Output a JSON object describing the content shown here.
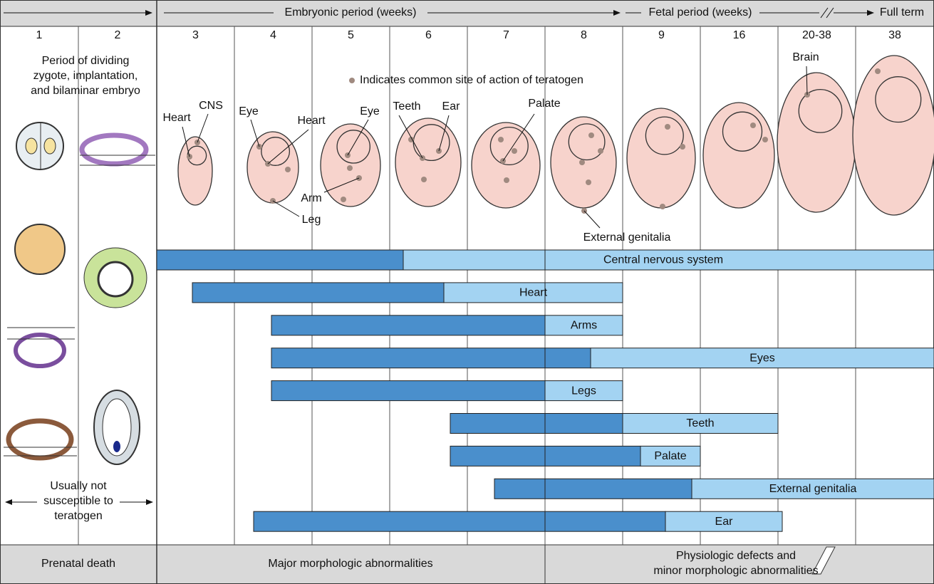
{
  "header": {
    "embryonic": "Embryonic period (weeks)",
    "fetal": "Fetal period (weeks)",
    "term": "Full term"
  },
  "weeks": [
    "1",
    "2",
    "3",
    "4",
    "5",
    "6",
    "7",
    "8",
    "9",
    "16",
    "20-38",
    "38"
  ],
  "early_note": [
    "Period of dividing",
    "zygote, implantation,",
    "and bilaminar embryo"
  ],
  "legend": "Indicates common site of action of teratogen",
  "labels": [
    "Heart",
    "CNS",
    "Eye",
    "Heart",
    "Eye",
    "Teeth",
    "Ear",
    "Palate",
    "Arm",
    "Leg",
    "External genitalia",
    "Brain"
  ],
  "not_susceptible": [
    "Usually not",
    "susceptible to",
    "teratogen"
  ],
  "organs": [
    "Central nervous system",
    "Heart",
    "Arms",
    "Eyes",
    "Legs",
    "Teeth",
    "Palate",
    "External genitalia",
    "Ear"
  ],
  "outcomes": [
    "Prenatal death",
    "Major morphologic abnormalities",
    "Physiologic defects and",
    "minor morphologic abnormalities"
  ]
}
